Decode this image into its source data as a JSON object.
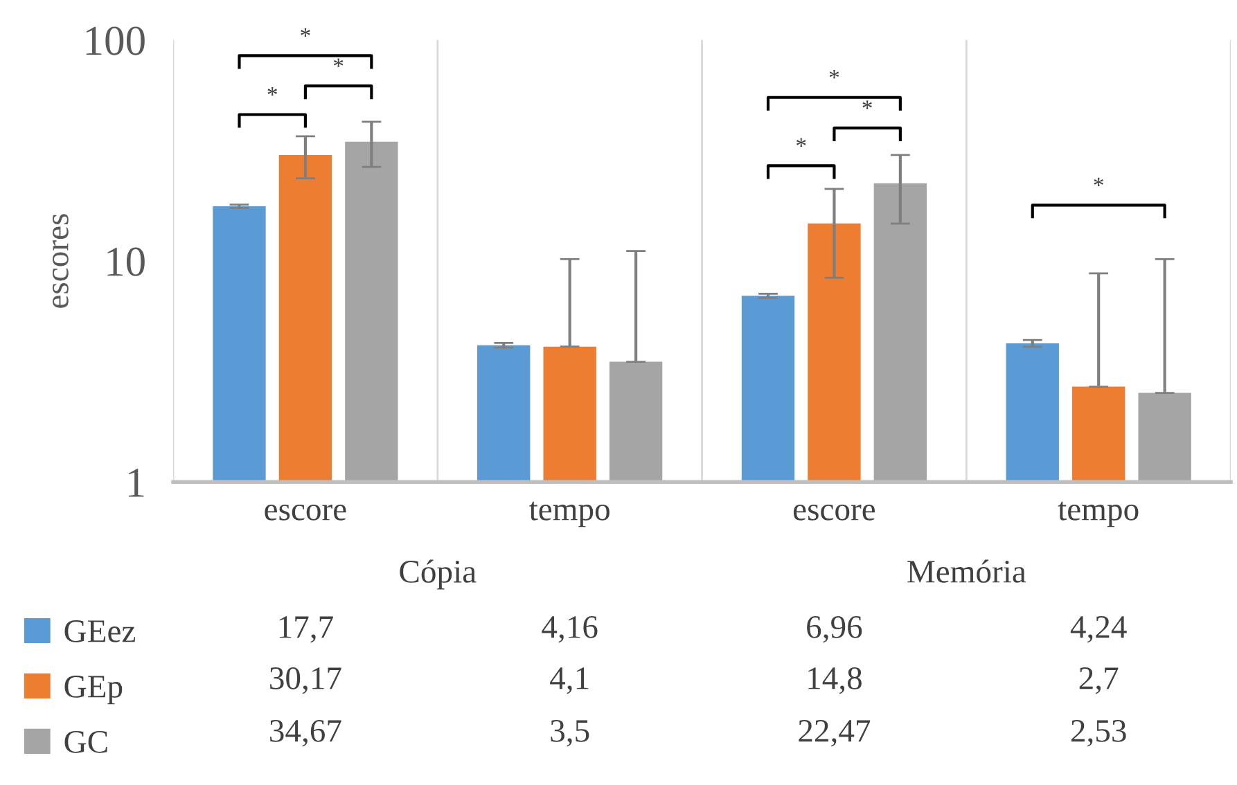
{
  "chart_data": {
    "type": "bar",
    "ylabel": "escores",
    "categories": [
      "escore",
      "tempo",
      "escore",
      "tempo"
    ],
    "series": [
      {
        "name": "GEez",
        "color": "#5b9bd5",
        "values": [
          17.7,
          4.16,
          6.96,
          4.24
        ],
        "errors": [
          0.3,
          0.1,
          0.15,
          0.15
        ],
        "value_labels": [
          "17,7",
          "4,16",
          "6,96",
          "4,24"
        ]
      },
      {
        "name": "GEp",
        "color": "#ed7d31",
        "values": [
          30.17,
          4.1,
          14.8,
          2.7
        ],
        "errors": [
          6.5,
          [
            4.1,
            10.2
          ],
          6.4,
          [
            2.7,
            8.8
          ]
        ],
        "value_labels": [
          "30,17",
          "4,1",
          "14,8",
          "2,7"
        ]
      },
      {
        "name": "GC",
        "color": "#a5a5a5",
        "values": [
          34.67,
          3.5,
          22.47,
          2.53
        ],
        "errors": [
          8,
          [
            3.5,
            11.1
          ],
          7.7,
          [
            2.53,
            10.2
          ]
        ],
        "value_labels": [
          "34,67",
          "3,5",
          "22,47",
          "2,53"
        ]
      }
    ],
    "log": "y",
    "ylim": [
      1,
      100
    ],
    "yticks": [
      1,
      10,
      100
    ],
    "grid": "x",
    "legend": "bottom",
    "annotations": [
      "Cópia",
      "Memória",
      "*",
      "*",
      "*",
      "*",
      "*",
      "*",
      "*"
    ]
  }
}
